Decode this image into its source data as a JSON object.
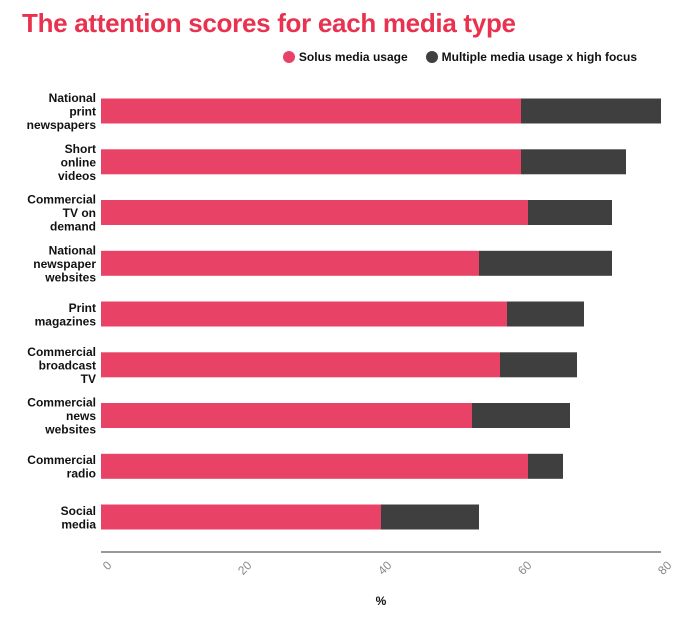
{
  "colors": {
    "title": "#e8324f",
    "solus": "#e84266",
    "multiple": "#3f3f3f",
    "axis": "#333333",
    "tick_label": "#888888"
  },
  "chart_data": {
    "type": "bar",
    "orientation": "horizontal",
    "stacked": true,
    "title": "The attention scores for each media type",
    "xlabel": "%",
    "ylabel": "",
    "xlim": [
      0,
      80
    ],
    "xticks": [
      0,
      20,
      40,
      60,
      80
    ],
    "grid": false,
    "legend_position": "top-right",
    "categories": [
      "National print newspapers",
      "Short online videos",
      "Commercial TV on demand",
      "National newspaper websites",
      "Print magazines",
      "Commercial broadcast TV",
      "Commercial news websites",
      "Commercial radio",
      "Social media"
    ],
    "series": [
      {
        "name": "Solus media usage",
        "values": [
          60,
          60,
          61,
          54,
          58,
          57,
          53,
          61,
          40
        ]
      },
      {
        "name": "Multiple media usage x high focus",
        "values": [
          20,
          15,
          12,
          19,
          11,
          11,
          14,
          5,
          14
        ]
      }
    ]
  }
}
